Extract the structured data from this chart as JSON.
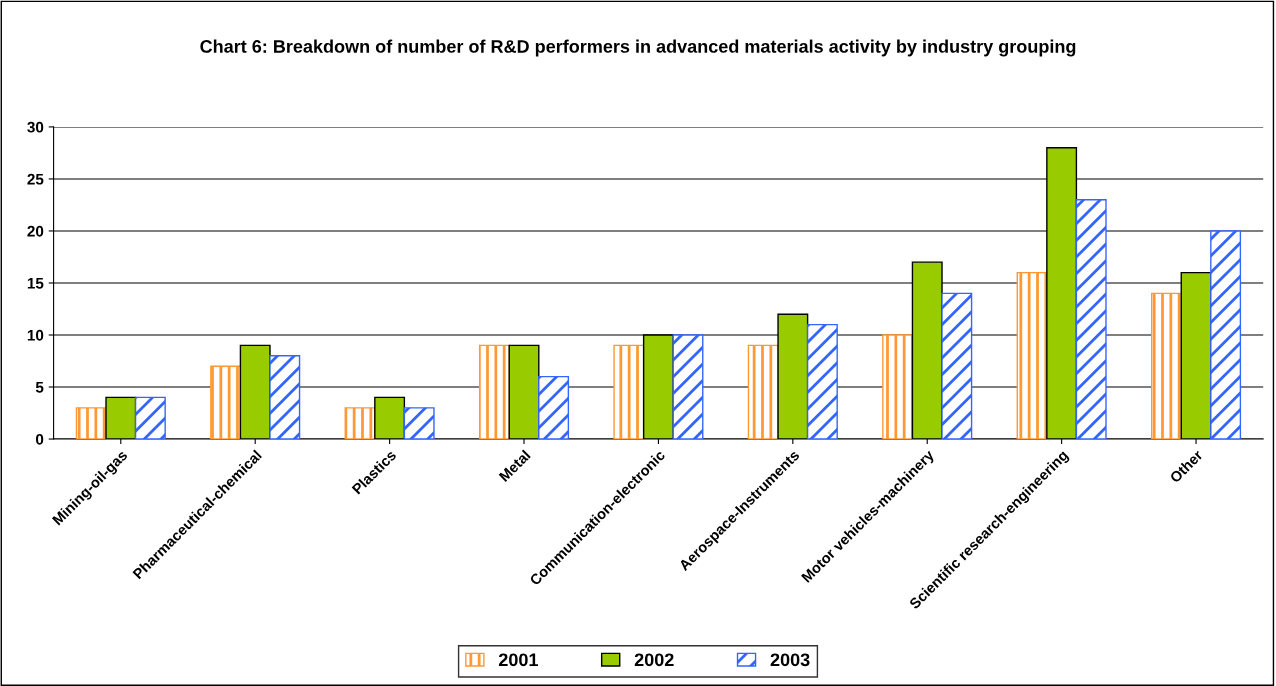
{
  "chart_data": {
    "type": "bar",
    "title": "Chart 6: Breakdown of number of R&D performers in advanced materials activity by industry grouping",
    "categories": [
      "Mining-oil-gas",
      "Pharmaceutical-chemical",
      "Plastics",
      "Metal",
      "Communication-electronic",
      "Aerospace-Instruments",
      "Motor vehicles-machinery",
      "Scientific research-engineering",
      "Other"
    ],
    "series": [
      {
        "name": "2001",
        "color": "#ff9933",
        "values": [
          3,
          7,
          3,
          9,
          9,
          9,
          10,
          16,
          14
        ]
      },
      {
        "name": "2002",
        "color": "#99cc00",
        "values": [
          4,
          9,
          4,
          9,
          10,
          12,
          17,
          28,
          16
        ]
      },
      {
        "name": "2003",
        "color": "#3366ff",
        "values": [
          4,
          8,
          3,
          6,
          10,
          11,
          14,
          23,
          20
        ]
      }
    ],
    "ylim": [
      0,
      30
    ],
    "yticks": [
      0,
      5,
      10,
      15,
      20,
      25,
      30
    ],
    "grid": "y",
    "legend": "bottom"
  }
}
